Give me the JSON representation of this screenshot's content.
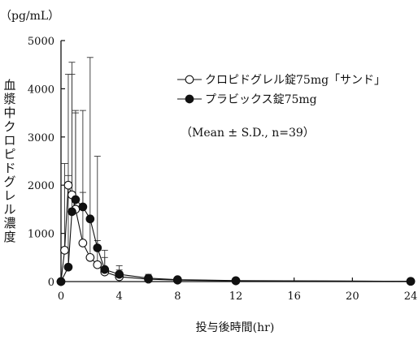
{
  "chart_data": {
    "type": "line",
    "unit_label": "（pg/mL）",
    "ylabel": "血漿中クロピドグレル濃度",
    "xlabel": "投与後時間(hr)",
    "xlim": [
      0,
      24
    ],
    "ylim": [
      0,
      5000
    ],
    "x_ticks": [
      0,
      4,
      8,
      12,
      16,
      20,
      24
    ],
    "y_ticks": [
      0,
      1000,
      2000,
      3000,
      4000,
      5000
    ],
    "note": "（Mean ± S.D., n=39）",
    "series": [
      {
        "name": "クロピドグレル錠75mg「サンド」",
        "marker": "open-circle",
        "x": [
          0,
          0.25,
          0.5,
          0.75,
          1,
          1.5,
          2,
          2.5,
          3,
          4,
          6,
          8,
          12,
          24
        ],
        "y": [
          0,
          650,
          2000,
          1800,
          1500,
          800,
          500,
          350,
          200,
          100,
          50,
          30,
          15,
          5
        ],
        "sd": [
          0,
          1800,
          2300,
          2500,
          2000,
          1050,
          800,
          500,
          300,
          140,
          70,
          40,
          20,
          10
        ]
      },
      {
        "name": "プラビックス錠75mg",
        "marker": "filled-circle",
        "x": [
          0,
          0.5,
          0.75,
          1,
          1.5,
          2,
          2.5,
          3,
          4,
          6,
          8,
          12,
          24
        ],
        "y": [
          0,
          300,
          1450,
          1700,
          1550,
          1300,
          700,
          250,
          150,
          70,
          40,
          20,
          5
        ],
        "sd": [
          0,
          1900,
          3100,
          1850,
          2000,
          3350,
          1900,
          400,
          180,
          80,
          50,
          25,
          10
        ]
      }
    ]
  }
}
